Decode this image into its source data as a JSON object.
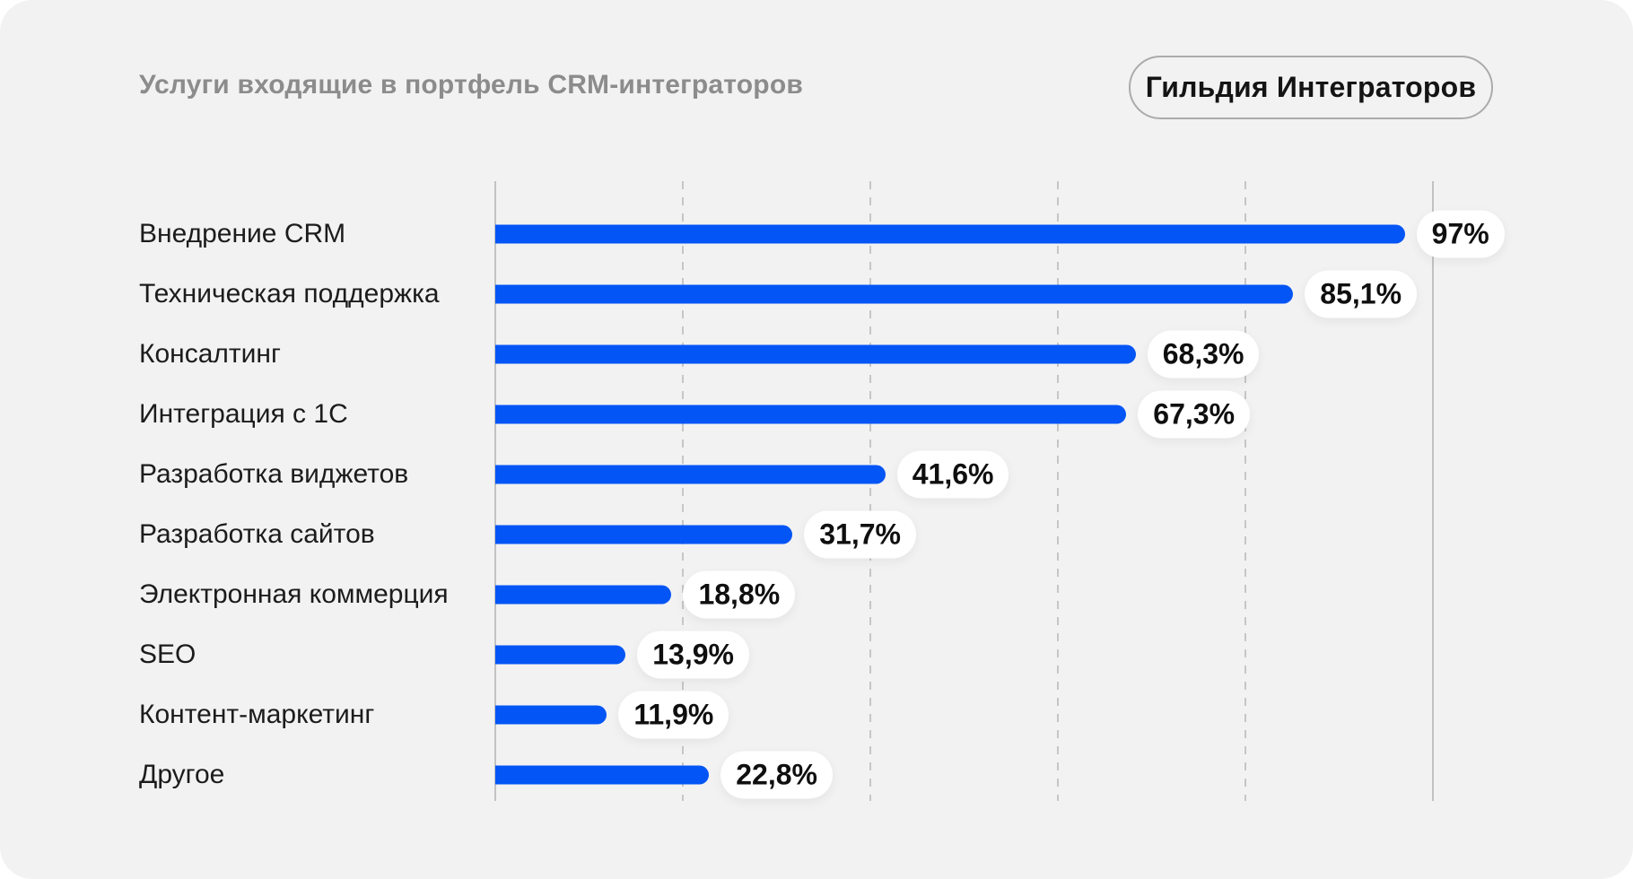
{
  "header": {
    "title": "Услуги входящие в портфель CRM-интеграторов",
    "badge_label": "Гильдия Интеграторов"
  },
  "colors": {
    "card_background": "#f2f2f2",
    "page_background": "#ffffff",
    "bar_color": "#0455f5",
    "title_color": "#8c8c8c",
    "label_color": "#1c1c1c",
    "pill_background": "#ffffff",
    "pill_text": "#0f0f0f",
    "badge_border": "#ababab",
    "gridline_solid": "#c2c2c2",
    "gridline_dashed": "#c6c6c6"
  },
  "chart_data": {
    "type": "bar",
    "orientation": "horizontal",
    "title": "Услуги входящие в портфель CRM-интеграторов",
    "categories": [
      "Внедрение CRM",
      "Техническая поддержка",
      "Консалтинг",
      "Интеграция с 1С",
      "Разработка виджетов",
      "Разработка сайтов",
      "Электронная коммерция",
      "SEO",
      "Контент-маркетинг",
      "Другое"
    ],
    "values": [
      97,
      85.1,
      68.3,
      67.3,
      41.6,
      31.7,
      18.8,
      13.9,
      11.9,
      22.8
    ],
    "value_labels": [
      "97%",
      "85,1%",
      "68,3%",
      "67,3%",
      "41,6%",
      "31,7%",
      "18,8%",
      "13,9%",
      "11,9%",
      "22,8%"
    ],
    "xlabel": "",
    "ylabel": "",
    "xlim": [
      0,
      100
    ],
    "ticks_percent": [
      0,
      20,
      40,
      60,
      80,
      100
    ],
    "solid_ticks": [
      0,
      100
    ],
    "dashed_ticks": [
      20,
      40,
      60,
      80
    ],
    "grid": true,
    "legend": false,
    "data_labels": true
  }
}
